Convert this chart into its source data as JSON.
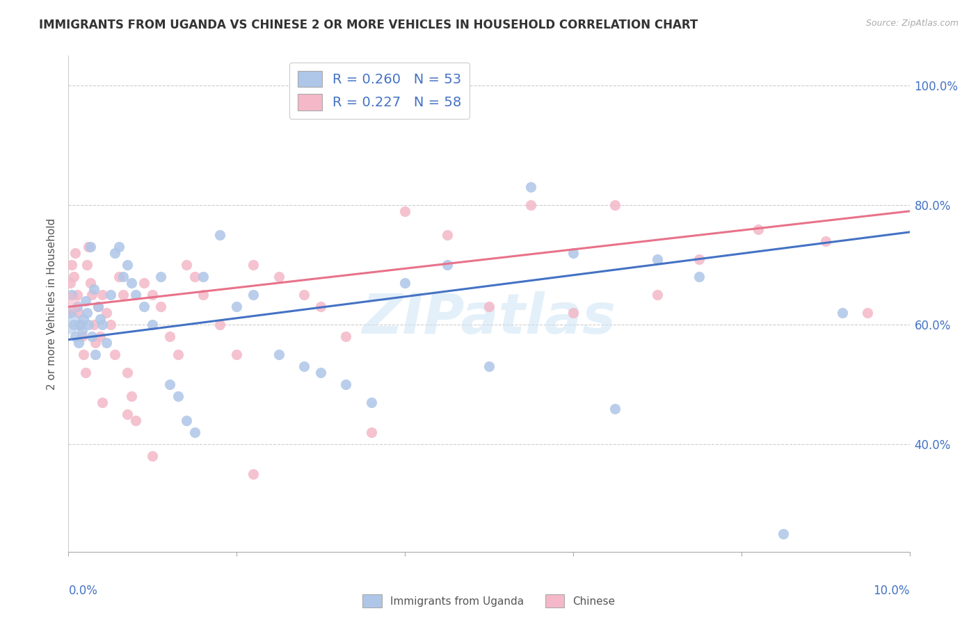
{
  "title": "IMMIGRANTS FROM UGANDA VS CHINESE 2 OR MORE VEHICLES IN HOUSEHOLD CORRELATION CHART",
  "source": "Source: ZipAtlas.com",
  "ylabel": "2 or more Vehicles in Household",
  "ytick_values": [
    0.4,
    0.6,
    0.8,
    1.0
  ],
  "xlim": [
    0.0,
    0.1
  ],
  "ylim": [
    0.22,
    1.05
  ],
  "series1_color": "#aec6e8",
  "series1_line_color": "#4472c4",
  "series2_color": "#f4b8c8",
  "series2_line_color": "#e8728a",
  "watermark": "ZIPatlas",
  "R1": 0.26,
  "N1": 53,
  "R2": 0.227,
  "N2": 58,
  "line1_x0": 0.0,
  "line1_y0": 0.575,
  "line1_x1": 0.1,
  "line1_y1": 0.755,
  "line2_x0": 0.0,
  "line2_y0": 0.63,
  "line2_x1": 0.1,
  "line2_y1": 0.79,
  "scatter1_x": [
    0.0002,
    0.0004,
    0.0006,
    0.0008,
    0.001,
    0.0012,
    0.0014,
    0.0016,
    0.0018,
    0.002,
    0.0022,
    0.0024,
    0.0026,
    0.0028,
    0.003,
    0.0032,
    0.0035,
    0.0038,
    0.004,
    0.0045,
    0.005,
    0.0055,
    0.006,
    0.0065,
    0.007,
    0.0075,
    0.008,
    0.009,
    0.01,
    0.011,
    0.012,
    0.013,
    0.014,
    0.015,
    0.016,
    0.018,
    0.02,
    0.022,
    0.025,
    0.028,
    0.03,
    0.033,
    0.036,
    0.04,
    0.045,
    0.05,
    0.055,
    0.06,
    0.065,
    0.07,
    0.075,
    0.085,
    0.092
  ],
  "scatter1_y": [
    0.62,
    0.65,
    0.6,
    0.58,
    0.63,
    0.57,
    0.6,
    0.59,
    0.61,
    0.64,
    0.62,
    0.6,
    0.73,
    0.58,
    0.66,
    0.55,
    0.63,
    0.61,
    0.6,
    0.57,
    0.65,
    0.72,
    0.73,
    0.68,
    0.7,
    0.67,
    0.65,
    0.63,
    0.6,
    0.68,
    0.5,
    0.48,
    0.44,
    0.42,
    0.68,
    0.75,
    0.63,
    0.65,
    0.55,
    0.53,
    0.52,
    0.5,
    0.47,
    0.67,
    0.7,
    0.53,
    0.83,
    0.72,
    0.46,
    0.71,
    0.68,
    0.25,
    0.62
  ],
  "scatter2_x": [
    0.0002,
    0.0004,
    0.0006,
    0.0008,
    0.001,
    0.0012,
    0.0014,
    0.0016,
    0.0018,
    0.002,
    0.0022,
    0.0024,
    0.0026,
    0.0028,
    0.003,
    0.0032,
    0.0035,
    0.0038,
    0.004,
    0.0045,
    0.005,
    0.0055,
    0.006,
    0.0065,
    0.007,
    0.0075,
    0.008,
    0.009,
    0.01,
    0.011,
    0.012,
    0.013,
    0.014,
    0.015,
    0.016,
    0.018,
    0.02,
    0.022,
    0.025,
    0.028,
    0.03,
    0.033,
    0.036,
    0.04,
    0.045,
    0.05,
    0.055,
    0.06,
    0.065,
    0.07,
    0.075,
    0.082,
    0.09,
    0.095,
    0.022,
    0.01,
    0.004,
    0.007
  ],
  "scatter2_y": [
    0.67,
    0.7,
    0.68,
    0.72,
    0.65,
    0.62,
    0.6,
    0.58,
    0.55,
    0.52,
    0.7,
    0.73,
    0.67,
    0.65,
    0.6,
    0.57,
    0.63,
    0.58,
    0.65,
    0.62,
    0.6,
    0.55,
    0.68,
    0.65,
    0.52,
    0.48,
    0.44,
    0.67,
    0.65,
    0.63,
    0.58,
    0.55,
    0.7,
    0.68,
    0.65,
    0.6,
    0.55,
    0.7,
    0.68,
    0.65,
    0.63,
    0.58,
    0.42,
    0.79,
    0.75,
    0.63,
    0.8,
    0.62,
    0.8,
    0.65,
    0.71,
    0.76,
    0.74,
    0.62,
    0.35,
    0.38,
    0.47,
    0.45
  ]
}
